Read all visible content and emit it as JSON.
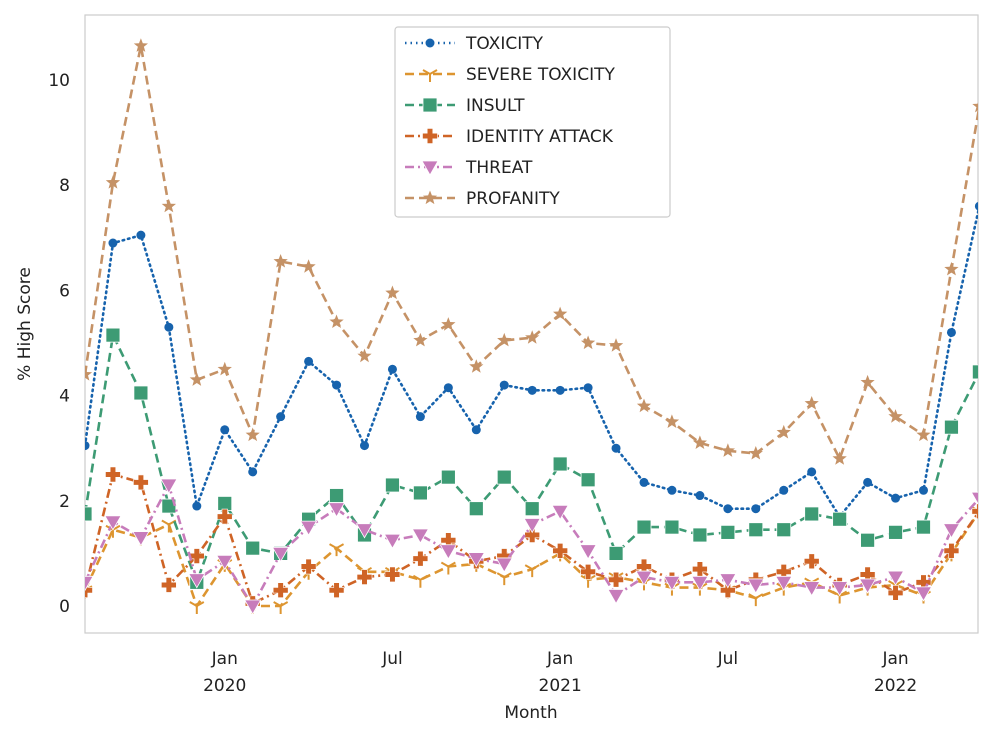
{
  "chart_data": {
    "type": "line",
    "title": "",
    "xlabel": "Month",
    "ylabel": "% High Score",
    "ylim": [
      -0.5,
      11.2
    ],
    "y_ticks": [
      0,
      2,
      4,
      6,
      8,
      10
    ],
    "x_start": "2019-08",
    "x_ticks": [
      {
        "month": "2020-01",
        "label": "Jan",
        "sublabel": "2020"
      },
      {
        "month": "2020-07",
        "label": "Jul",
        "sublabel": ""
      },
      {
        "month": "2021-01",
        "label": "Jan",
        "sublabel": "2021"
      },
      {
        "month": "2021-07",
        "label": "Jul",
        "sublabel": ""
      },
      {
        "month": "2022-01",
        "label": "Jan",
        "sublabel": "2022"
      }
    ],
    "grid": false,
    "legend_position": "top-center",
    "x": [
      "2019-08",
      "2019-09",
      "2019-10",
      "2019-11",
      "2019-12",
      "2020-01",
      "2020-02",
      "2020-03",
      "2020-04",
      "2020-05",
      "2020-06",
      "2020-07",
      "2020-08",
      "2020-09",
      "2020-10",
      "2020-11",
      "2020-12",
      "2021-01",
      "2021-02",
      "2021-03",
      "2021-04",
      "2021-05",
      "2021-06",
      "2021-07",
      "2021-08",
      "2021-09",
      "2021-10",
      "2021-11",
      "2021-12",
      "2022-01",
      "2022-02",
      "2022-03",
      "2022-04"
    ],
    "series": [
      {
        "name": "TOXICITY",
        "color": "#1763ad",
        "dash": "dotted",
        "marker": "circle",
        "values": [
          3.05,
          6.9,
          7.05,
          5.3,
          1.9,
          3.35,
          2.55,
          3.6,
          4.65,
          4.2,
          3.05,
          4.5,
          3.6,
          4.15,
          3.35,
          4.2,
          4.1,
          4.1,
          4.15,
          3.0,
          2.35,
          2.2,
          2.1,
          1.85,
          1.85,
          2.2,
          2.55,
          1.7,
          2.35,
          2.05,
          2.2,
          5.2,
          7.6
        ]
      },
      {
        "name": "SEVERE TOXICITY",
        "color": "#dd9530",
        "dash": "dashed",
        "marker": "tri-down",
        "values": [
          0.3,
          1.45,
          1.3,
          1.55,
          0.0,
          0.8,
          0.0,
          0.0,
          0.65,
          1.1,
          0.65,
          0.65,
          0.5,
          0.75,
          0.8,
          0.55,
          0.7,
          1.0,
          0.5,
          0.55,
          0.45,
          0.35,
          0.35,
          0.3,
          0.15,
          0.35,
          0.45,
          0.2,
          0.35,
          0.4,
          0.2,
          1.0,
          1.8
        ]
      },
      {
        "name": "INSULT",
        "color": "#3d9b74",
        "dash": "dashed",
        "marker": "square",
        "values": [
          1.75,
          5.15,
          4.05,
          1.9,
          0.45,
          1.95,
          1.1,
          1.0,
          1.65,
          2.1,
          1.35,
          2.3,
          2.15,
          2.45,
          1.85,
          2.45,
          1.85,
          2.7,
          2.4,
          1.0,
          1.5,
          1.5,
          1.35,
          1.4,
          1.45,
          1.45,
          1.75,
          1.65,
          1.25,
          1.4,
          1.5,
          3.4,
          4.45
        ]
      },
      {
        "name": "IDENTITY ATTACK",
        "color": "#cf6426",
        "dash": "dashdot",
        "marker": "plus-filled",
        "values": [
          0.3,
          2.5,
          2.35,
          0.4,
          0.95,
          1.7,
          0.05,
          0.3,
          0.75,
          0.3,
          0.55,
          0.6,
          0.9,
          1.25,
          0.85,
          0.95,
          1.35,
          1.05,
          0.65,
          0.5,
          0.75,
          0.5,
          0.7,
          0.3,
          0.5,
          0.65,
          0.85,
          0.4,
          0.6,
          0.25,
          0.45,
          1.05,
          1.8
        ]
      },
      {
        "name": "THREAT",
        "color": "#c77cbb",
        "dash": "dashdot",
        "marker": "triangle-down",
        "values": [
          0.45,
          1.6,
          1.3,
          2.3,
          0.5,
          0.85,
          0.0,
          1.0,
          1.5,
          1.85,
          1.45,
          1.25,
          1.35,
          1.05,
          0.9,
          0.8,
          1.55,
          1.8,
          1.05,
          0.2,
          0.55,
          0.45,
          0.45,
          0.5,
          0.4,
          0.45,
          0.35,
          0.35,
          0.4,
          0.55,
          0.25,
          1.45,
          2.05
        ]
      },
      {
        "name": "PROFANITY",
        "color": "#c59266",
        "dash": "dashed",
        "marker": "star",
        "values": [
          4.4,
          8.05,
          10.65,
          7.6,
          4.3,
          4.5,
          3.25,
          6.55,
          6.45,
          5.4,
          4.75,
          5.95,
          5.05,
          5.35,
          4.55,
          5.05,
          5.1,
          5.55,
          5.0,
          4.95,
          3.8,
          3.5,
          3.1,
          2.95,
          2.9,
          3.3,
          3.85,
          2.8,
          4.25,
          3.6,
          3.25,
          6.4,
          9.5
        ]
      }
    ]
  }
}
